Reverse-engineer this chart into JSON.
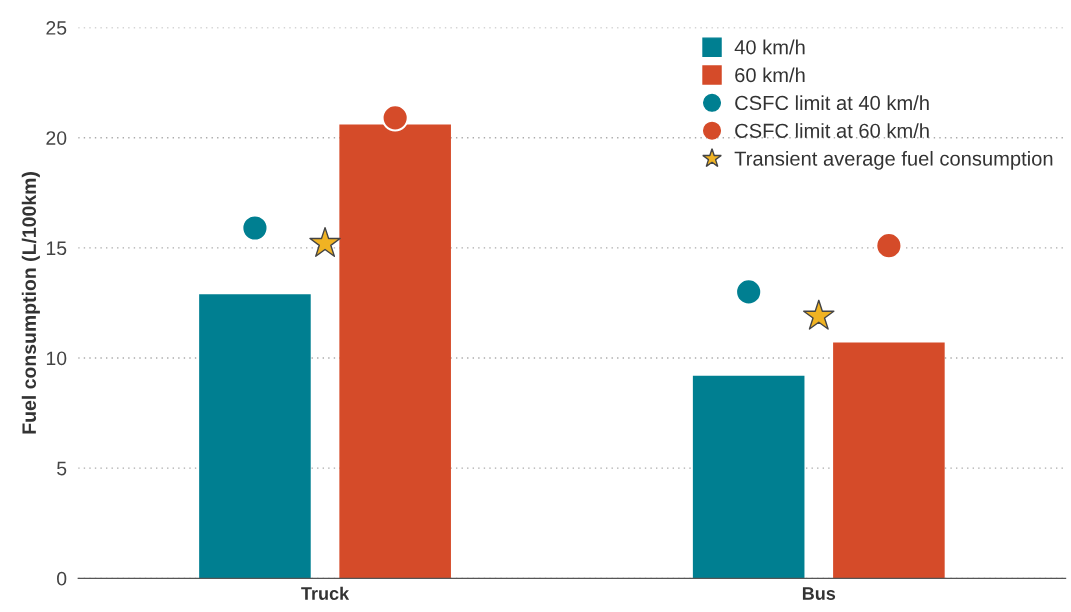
{
  "chart_data": {
    "type": "bar",
    "ylabel": "Fuel consumption (L/100km)",
    "categories": [
      "Truck",
      "Bus"
    ],
    "ylim": [
      0,
      25
    ],
    "yticks": [
      0,
      5,
      10,
      15,
      20,
      25
    ],
    "grid": "y",
    "legend": "top right",
    "series": [
      {
        "name": "40 km/h",
        "color": "#007f91",
        "values": [
          12.9,
          9.2
        ]
      },
      {
        "name": "60 km/h",
        "color": "#d54b29",
        "values": [
          20.6,
          10.7
        ]
      },
      {
        "name": "CSFC limit at 40 km/h",
        "type": "scatter",
        "marker": "circle",
        "color": "#007f91",
        "x": [
          "Truck",
          "Bus"
        ],
        "values": [
          15.9,
          13.0
        ]
      },
      {
        "name": "CSFC limit at 60 km/h",
        "type": "scatter",
        "marker": "circle",
        "color": "#d54b29",
        "x": [
          "Truck",
          "Bus"
        ],
        "values": [
          20.9,
          15.1
        ]
      },
      {
        "name": "Transient average fuel consumption",
        "type": "scatter",
        "marker": "star",
        "color": "#f0b323",
        "x": [
          "Truck",
          "Bus"
        ],
        "values": [
          15.2,
          11.9
        ]
      }
    ]
  }
}
